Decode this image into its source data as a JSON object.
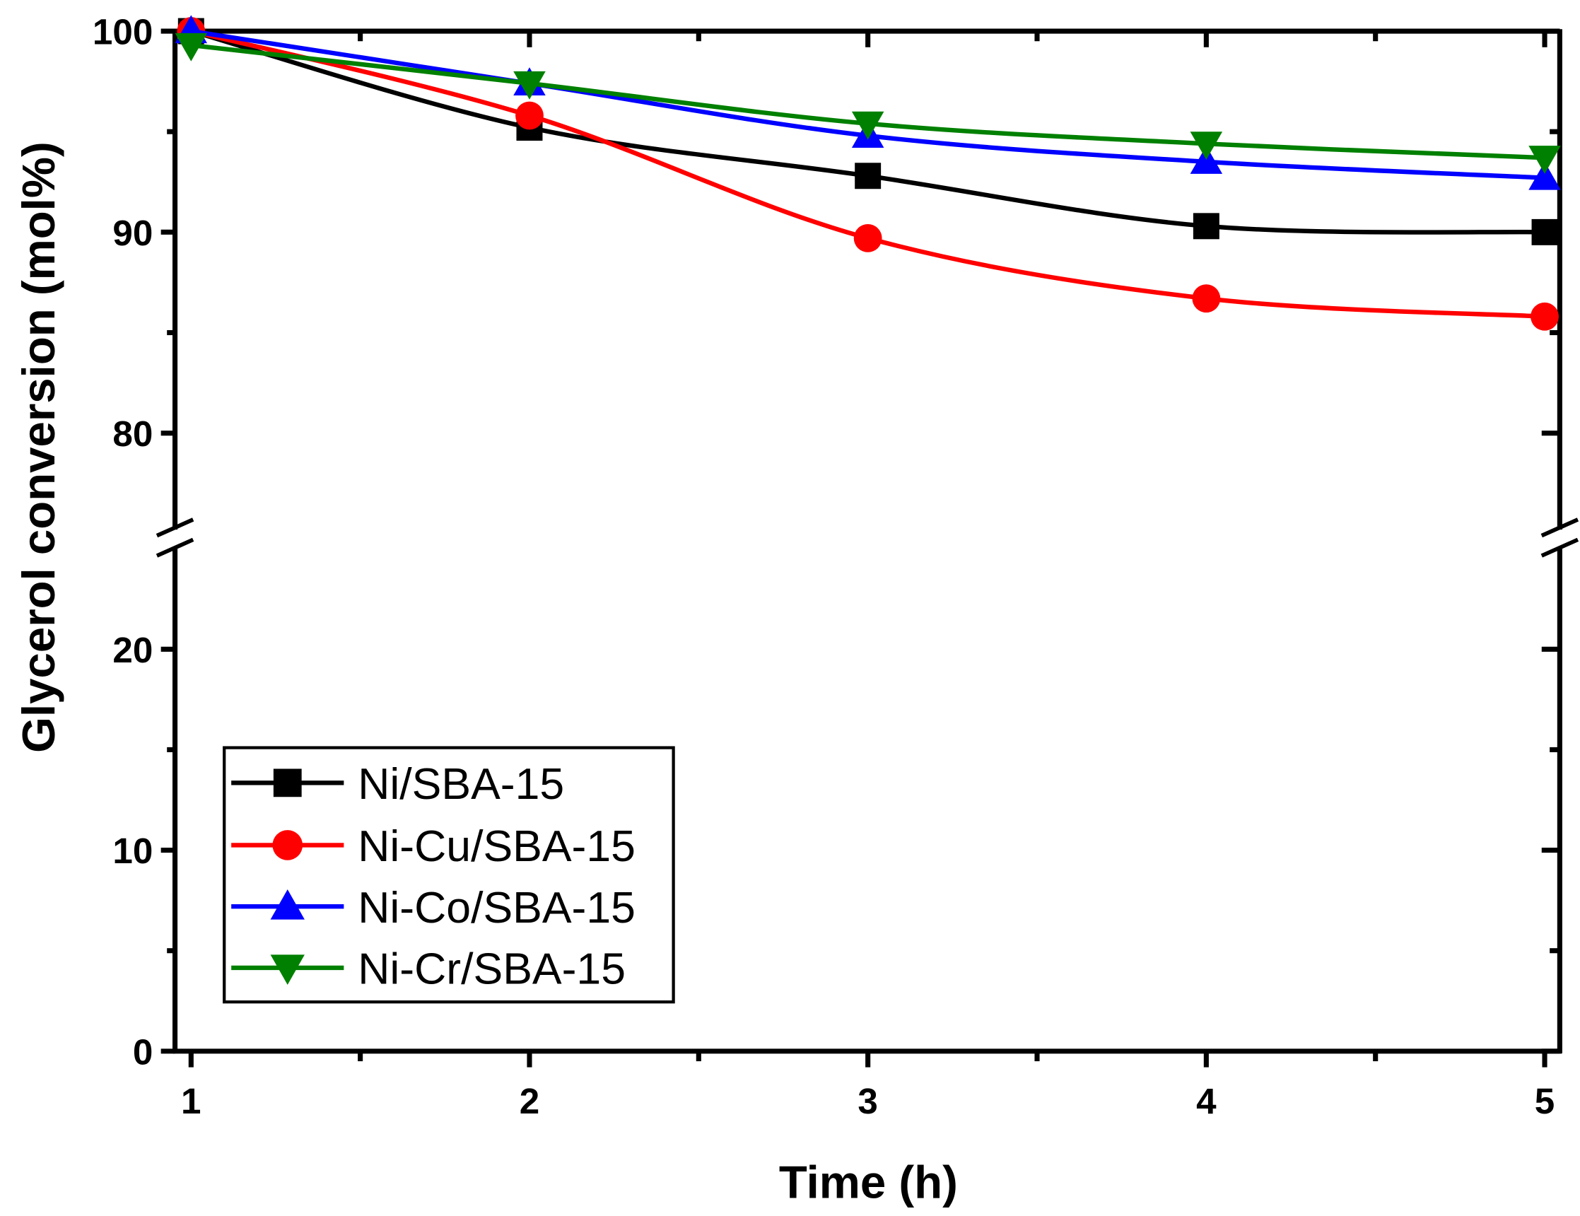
{
  "chart_data": {
    "type": "line",
    "title": "",
    "xlabel": "Time (h)",
    "ylabel": "Glycerol conversion (mol%)",
    "x": [
      1,
      2,
      3,
      4,
      5
    ],
    "xlim": [
      1,
      5
    ],
    "x_ticks": [
      "1",
      "2",
      "3",
      "4",
      "5"
    ],
    "y_axis_break": [
      25,
      75
    ],
    "ylim_lower": [
      0,
      25
    ],
    "ylim_upper": [
      75,
      100
    ],
    "y_ticks": [
      "0",
      "10",
      "20",
      "80",
      "90",
      "100"
    ],
    "grid": false,
    "legend_position": "bottom-left",
    "series": [
      {
        "name": "Ni/SBA-15",
        "color": "#000000",
        "marker": "square",
        "values": [
          100.0,
          95.2,
          92.8,
          90.3,
          90.0
        ]
      },
      {
        "name": "Ni-Cu/SBA-15",
        "color": "#ff0000",
        "marker": "circle",
        "values": [
          100.0,
          95.8,
          89.7,
          86.7,
          85.8
        ]
      },
      {
        "name": "Ni-Co/SBA-15",
        "color": "#0000ff",
        "marker": "triangle-up",
        "values": [
          100.0,
          97.4,
          94.8,
          93.5,
          92.7
        ]
      },
      {
        "name": "Ni-Cr/SBA-15",
        "color": "#008000",
        "marker": "triangle-down",
        "values": [
          99.3,
          97.4,
          95.4,
          94.4,
          93.7
        ]
      }
    ]
  }
}
